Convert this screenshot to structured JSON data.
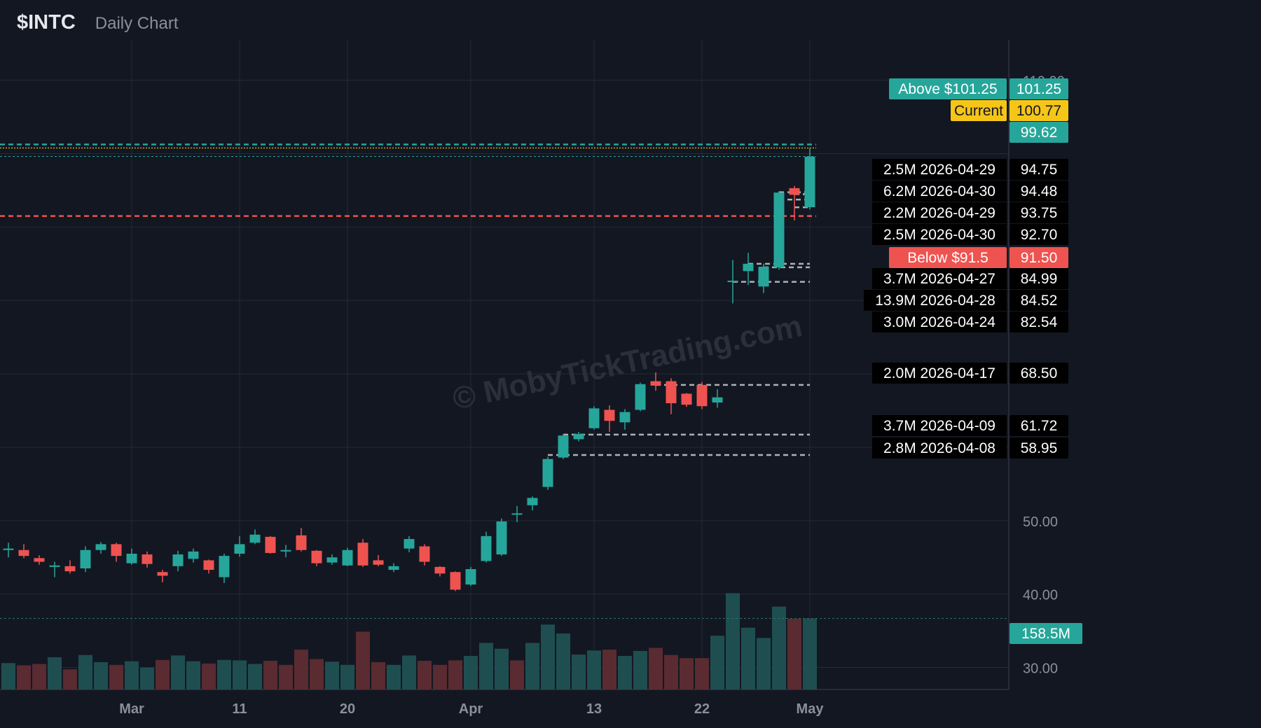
{
  "header": {
    "ticker": "$INTC",
    "subtitle": "Daily Chart"
  },
  "watermark": "© MobyTickTrading.com",
  "colors": {
    "background": "#131722",
    "grid": "#252a36",
    "up": "#26a69a",
    "down": "#ef5350",
    "current": "#f5c518",
    "dashed_level": "#c8ccd4",
    "text": "#d1d4dc",
    "axis_text": "#8a8f9c"
  },
  "chart_data": {
    "type": "candlestick",
    "title": "$INTC",
    "subtitle": "Daily Chart",
    "ylim": [
      27.0,
      115.5
    ],
    "y_ticks": [
      "110.00",
      "70.00",
      "50.00",
      "40.00",
      "30.00"
    ],
    "x_ticks": [
      {
        "label": "Mar",
        "date": "2026-03-02"
      },
      {
        "label": "11",
        "date": "2026-03-11"
      },
      {
        "label": "20",
        "date": "2026-03-20"
      },
      {
        "label": "Apr",
        "date": "2026-04-01"
      },
      {
        "label": "13",
        "date": "2026-04-13"
      },
      {
        "label": "22",
        "date": "2026-04-22"
      },
      {
        "label": "May",
        "date": "2026-05-01"
      }
    ],
    "candles": [
      {
        "date": "2026-02-17",
        "o": 46.0,
        "h": 47.0,
        "l": 45.4,
        "c": 46.5
      },
      {
        "date": "2026-02-18",
        "o": 46.0,
        "h": 47.0,
        "l": 45.0,
        "c": 46.2
      },
      {
        "date": "2026-02-19",
        "o": 46.0,
        "h": 46.8,
        "l": 44.9,
        "c": 45.2
      },
      {
        "date": "2026-02-20",
        "o": 44.9,
        "h": 45.3,
        "l": 44.0,
        "c": 44.4
      },
      {
        "date": "2026-02-23",
        "o": 43.7,
        "h": 44.4,
        "l": 42.3,
        "c": 43.9
      },
      {
        "date": "2026-02-24",
        "o": 43.8,
        "h": 44.6,
        "l": 42.8,
        "c": 43.1
      },
      {
        "date": "2026-02-25",
        "o": 43.5,
        "h": 46.5,
        "l": 43.0,
        "c": 46.0
      },
      {
        "date": "2026-02-26",
        "o": 46.0,
        "h": 47.1,
        "l": 45.5,
        "c": 46.8
      },
      {
        "date": "2026-02-27",
        "o": 46.8,
        "h": 47.0,
        "l": 44.4,
        "c": 45.2
      },
      {
        "date": "2026-03-02",
        "o": 44.2,
        "h": 46.2,
        "l": 44.0,
        "c": 45.5
      },
      {
        "date": "2026-03-03",
        "o": 45.4,
        "h": 45.8,
        "l": 43.6,
        "c": 44.1
      },
      {
        "date": "2026-03-04",
        "o": 43.0,
        "h": 43.3,
        "l": 41.6,
        "c": 42.5
      },
      {
        "date": "2026-03-05",
        "o": 43.8,
        "h": 45.9,
        "l": 43.1,
        "c": 45.4
      },
      {
        "date": "2026-03-06",
        "o": 44.8,
        "h": 46.2,
        "l": 44.3,
        "c": 45.8
      },
      {
        "date": "2026-03-09",
        "o": 44.6,
        "h": 44.7,
        "l": 42.8,
        "c": 43.3
      },
      {
        "date": "2026-03-10",
        "o": 42.3,
        "h": 45.5,
        "l": 41.5,
        "c": 45.2
      },
      {
        "date": "2026-03-11",
        "o": 45.5,
        "h": 47.9,
        "l": 45.1,
        "c": 46.8
      },
      {
        "date": "2026-03-12",
        "o": 47.0,
        "h": 48.8,
        "l": 46.8,
        "c": 48.1
      },
      {
        "date": "2026-03-13",
        "o": 47.8,
        "h": 47.9,
        "l": 45.5,
        "c": 45.6
      },
      {
        "date": "2026-03-16",
        "o": 45.8,
        "h": 46.7,
        "l": 45.0,
        "c": 46.0
      },
      {
        "date": "2026-03-17",
        "o": 48.0,
        "h": 49.0,
        "l": 45.8,
        "c": 46.0
      },
      {
        "date": "2026-03-18",
        "o": 45.9,
        "h": 46.0,
        "l": 43.8,
        "c": 44.2
      },
      {
        "date": "2026-03-19",
        "o": 44.3,
        "h": 45.4,
        "l": 44.0,
        "c": 45.0
      },
      {
        "date": "2026-03-20",
        "o": 43.9,
        "h": 46.3,
        "l": 43.8,
        "c": 46.0
      },
      {
        "date": "2026-03-23",
        "o": 47.0,
        "h": 47.5,
        "l": 43.7,
        "c": 43.9
      },
      {
        "date": "2026-03-24",
        "o": 44.6,
        "h": 45.3,
        "l": 43.8,
        "c": 44.0
      },
      {
        "date": "2026-03-25",
        "o": 43.3,
        "h": 44.2,
        "l": 43.0,
        "c": 43.8
      },
      {
        "date": "2026-03-26",
        "o": 46.2,
        "h": 47.9,
        "l": 45.7,
        "c": 47.5
      },
      {
        "date": "2026-03-27",
        "o": 46.5,
        "h": 46.8,
        "l": 43.9,
        "c": 44.4
      },
      {
        "date": "2026-03-30",
        "o": 43.7,
        "h": 43.8,
        "l": 42.4,
        "c": 42.8
      },
      {
        "date": "2026-03-31",
        "o": 43.0,
        "h": 43.1,
        "l": 40.4,
        "c": 40.6
      },
      {
        "date": "2026-04-01",
        "o": 41.3,
        "h": 43.7,
        "l": 41.1,
        "c": 43.4
      },
      {
        "date": "2026-04-02",
        "o": 44.5,
        "h": 48.5,
        "l": 44.3,
        "c": 47.9
      },
      {
        "date": "2026-04-03",
        "o": 45.4,
        "h": 50.3,
        "l": 45.2,
        "c": 49.9
      },
      {
        "date": "2026-04-06",
        "o": 51.0,
        "h": 52.0,
        "l": 49.8,
        "c": 51.0
      },
      {
        "date": "2026-04-07",
        "o": 52.1,
        "h": 53.3,
        "l": 51.4,
        "c": 53.1
      },
      {
        "date": "2026-04-08",
        "o": 54.6,
        "h": 58.7,
        "l": 54.2,
        "c": 58.4
      },
      {
        "date": "2026-04-09",
        "o": 58.6,
        "h": 61.8,
        "l": 58.4,
        "c": 61.6
      },
      {
        "date": "2026-04-10",
        "o": 61.1,
        "h": 62.1,
        "l": 60.8,
        "c": 61.8
      },
      {
        "date": "2026-04-13",
        "o": 62.6,
        "h": 65.6,
        "l": 62.4,
        "c": 65.3
      },
      {
        "date": "2026-04-14",
        "o": 65.1,
        "h": 65.7,
        "l": 62.1,
        "c": 63.6
      },
      {
        "date": "2026-04-15",
        "o": 63.4,
        "h": 65.2,
        "l": 62.4,
        "c": 64.8
      },
      {
        "date": "2026-04-16",
        "o": 65.1,
        "h": 68.8,
        "l": 64.9,
        "c": 68.6
      },
      {
        "date": "2026-04-17",
        "o": 69.0,
        "h": 70.2,
        "l": 67.7,
        "c": 68.4
      },
      {
        "date": "2026-04-20",
        "o": 69.0,
        "h": 69.4,
        "l": 64.5,
        "c": 66.0
      },
      {
        "date": "2026-04-21",
        "o": 67.3,
        "h": 67.4,
        "l": 65.5,
        "c": 65.8
      },
      {
        "date": "2026-04-22",
        "o": 68.5,
        "h": 68.9,
        "l": 65.2,
        "c": 65.6
      },
      {
        "date": "2026-04-23",
        "o": 66.1,
        "h": 67.9,
        "l": 65.4,
        "c": 66.8
      },
      {
        "date": "2026-04-24",
        "o": 82.5,
        "h": 85.5,
        "l": 79.6,
        "c": 82.7
      },
      {
        "date": "2026-04-27",
        "o": 84.0,
        "h": 86.5,
        "l": 82.1,
        "c": 85.0
      },
      {
        "date": "2026-04-28",
        "o": 81.9,
        "h": 85.0,
        "l": 81.0,
        "c": 84.6
      },
      {
        "date": "2026-04-29",
        "o": 84.5,
        "h": 94.9,
        "l": 84.2,
        "c": 94.7
      },
      {
        "date": "2026-04-30",
        "o": 95.3,
        "h": 95.6,
        "l": 90.9,
        "c": 94.4
      },
      {
        "date": "2026-05-01",
        "o": 92.7,
        "h": 100.8,
        "l": 92.4,
        "c": 99.6
      }
    ],
    "volume": [
      {
        "date": "2026-02-17",
        "v": 56,
        "up": true
      },
      {
        "date": "2026-02-18",
        "v": 59,
        "up": true
      },
      {
        "date": "2026-02-19",
        "v": 54,
        "up": false
      },
      {
        "date": "2026-02-20",
        "v": 57,
        "up": false
      },
      {
        "date": "2026-02-23",
        "v": 72,
        "up": true
      },
      {
        "date": "2026-02-24",
        "v": 45,
        "up": false
      },
      {
        "date": "2026-02-25",
        "v": 77,
        "up": true
      },
      {
        "date": "2026-02-26",
        "v": 61,
        "up": true
      },
      {
        "date": "2026-02-27",
        "v": 55,
        "up": false
      },
      {
        "date": "2026-03-02",
        "v": 63,
        "up": true
      },
      {
        "date": "2026-03-03",
        "v": 49,
        "up": true
      },
      {
        "date": "2026-03-04",
        "v": 66,
        "up": false
      },
      {
        "date": "2026-03-05",
        "v": 76,
        "up": true
      },
      {
        "date": "2026-03-06",
        "v": 63,
        "up": true
      },
      {
        "date": "2026-03-09",
        "v": 58,
        "up": false
      },
      {
        "date": "2026-03-10",
        "v": 66,
        "up": true
      },
      {
        "date": "2026-03-11",
        "v": 65,
        "up": true
      },
      {
        "date": "2026-03-12",
        "v": 57,
        "up": true
      },
      {
        "date": "2026-03-13",
        "v": 64,
        "up": false
      },
      {
        "date": "2026-03-16",
        "v": 55,
        "up": false
      },
      {
        "date": "2026-03-17",
        "v": 89,
        "up": false
      },
      {
        "date": "2026-03-18",
        "v": 68,
        "up": false
      },
      {
        "date": "2026-03-19",
        "v": 62,
        "up": true
      },
      {
        "date": "2026-03-20",
        "v": 55,
        "up": true
      },
      {
        "date": "2026-03-23",
        "v": 129,
        "up": false
      },
      {
        "date": "2026-03-24",
        "v": 61,
        "up": false
      },
      {
        "date": "2026-03-25",
        "v": 55,
        "up": true
      },
      {
        "date": "2026-03-26",
        "v": 76,
        "up": true
      },
      {
        "date": "2026-03-27",
        "v": 64,
        "up": false
      },
      {
        "date": "2026-03-30",
        "v": 55,
        "up": false
      },
      {
        "date": "2026-03-31",
        "v": 65,
        "up": false
      },
      {
        "date": "2026-04-01",
        "v": 75,
        "up": true
      },
      {
        "date": "2026-04-02",
        "v": 104,
        "up": true
      },
      {
        "date": "2026-04-03",
        "v": 91,
        "up": true
      },
      {
        "date": "2026-04-06",
        "v": 65,
        "up": false
      },
      {
        "date": "2026-04-07",
        "v": 104,
        "up": true
      },
      {
        "date": "2026-04-08",
        "v": 145,
        "up": true
      },
      {
        "date": "2026-04-09",
        "v": 125,
        "up": true
      },
      {
        "date": "2026-04-10",
        "v": 78,
        "up": true
      },
      {
        "date": "2026-04-13",
        "v": 87,
        "up": true
      },
      {
        "date": "2026-04-14",
        "v": 89,
        "up": false
      },
      {
        "date": "2026-04-15",
        "v": 75,
        "up": true
      },
      {
        "date": "2026-04-16",
        "v": 86,
        "up": true
      },
      {
        "date": "2026-04-17",
        "v": 93,
        "up": false
      },
      {
        "date": "2026-04-20",
        "v": 77,
        "up": false
      },
      {
        "date": "2026-04-21",
        "v": 70,
        "up": false
      },
      {
        "date": "2026-04-22",
        "v": 70,
        "up": false
      },
      {
        "date": "2026-04-23",
        "v": 120,
        "up": true
      },
      {
        "date": "2026-04-24",
        "v": 215,
        "up": true
      },
      {
        "date": "2026-04-27",
        "v": 138,
        "up": true
      },
      {
        "date": "2026-04-28",
        "v": 115,
        "up": true
      },
      {
        "date": "2026-04-29",
        "v": 185,
        "up": true
      },
      {
        "date": "2026-04-30",
        "v": 158,
        "up": false
      },
      {
        "date": "2026-05-01",
        "v": 158.5,
        "up": true
      }
    ],
    "volume_label": "158.5M",
    "level_lines": [
      {
        "label": "Above $101.25",
        "value": "101.25",
        "price": 101.25,
        "style": "dashed",
        "color": "#26a69a",
        "badge_bg": "#26a69a"
      },
      {
        "label": "Current",
        "value": "100.77",
        "price": 100.77,
        "style": "dotted",
        "color": "#f5c518",
        "badge_bg": "#f5c518"
      },
      {
        "label": "",
        "value": "99.62",
        "price": 99.62,
        "style": "dotted-thin",
        "color": "#26a69a",
        "badge_bg": "#26a69a"
      },
      {
        "label": "Below $91.5",
        "value": "91.50",
        "price": 91.5,
        "style": "dashed",
        "color": "#ef5350",
        "badge_bg": "#ef5350"
      }
    ],
    "volume_levels": [
      {
        "volume": "2.5M",
        "date": "2026-04-29",
        "price": "94.75"
      },
      {
        "volume": "6.2M",
        "date": "2026-04-30",
        "price": "94.48"
      },
      {
        "volume": "2.2M",
        "date": "2026-04-29",
        "price": "93.75"
      },
      {
        "volume": "2.5M",
        "date": "2026-04-30",
        "price": "92.70"
      },
      {
        "volume": "3.7M",
        "date": "2026-04-27",
        "price": "84.99"
      },
      {
        "volume": "13.9M",
        "date": "2026-04-28",
        "price": "84.52"
      },
      {
        "volume": "3.0M",
        "date": "2026-04-24",
        "price": "82.54"
      },
      {
        "volume": "2.0M",
        "date": "2026-04-17",
        "price": "68.50"
      },
      {
        "volume": "3.7M",
        "date": "2026-04-09",
        "price": "61.72"
      },
      {
        "volume": "2.8M",
        "date": "2026-04-08",
        "price": "58.95"
      }
    ]
  }
}
